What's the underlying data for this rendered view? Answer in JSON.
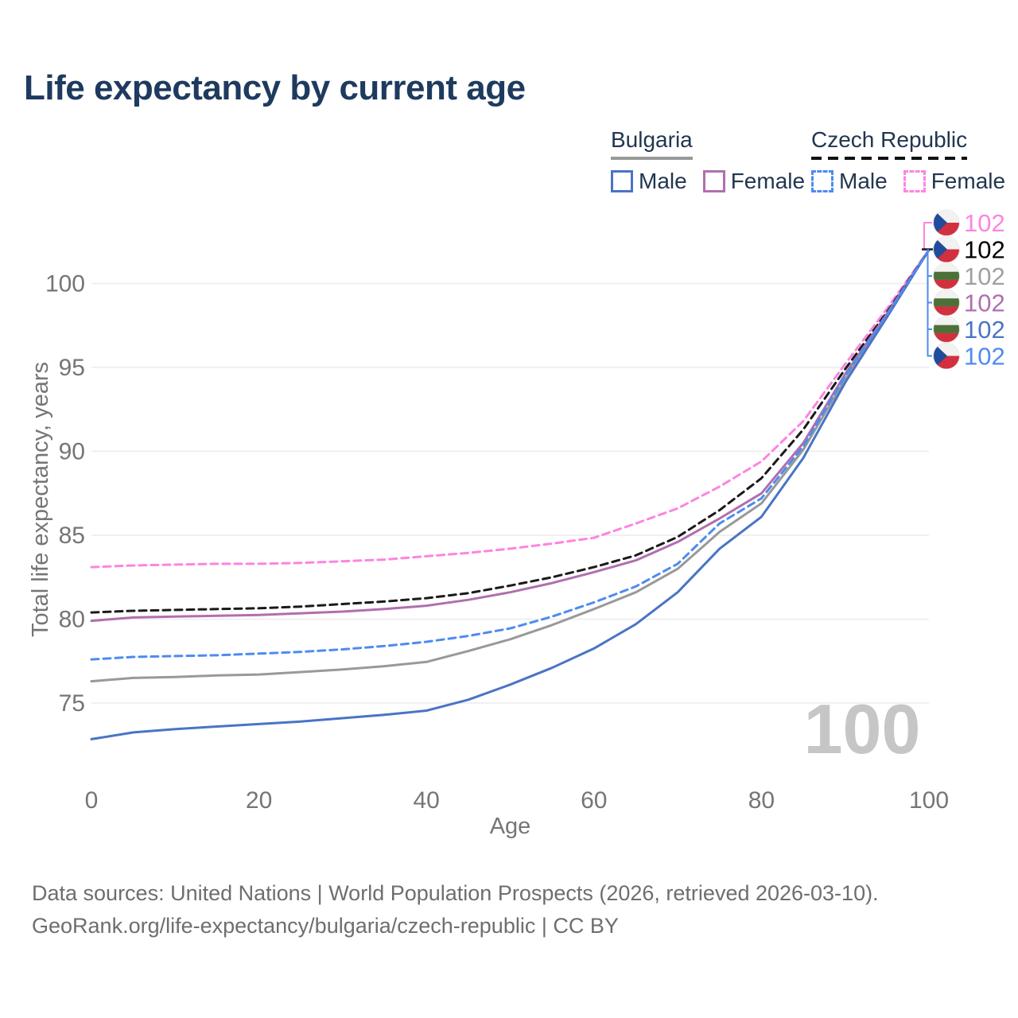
{
  "title": "Life expectancy by current age",
  "legend": {
    "groups": [
      {
        "country": "Bulgaria",
        "line_style": "solid",
        "rule_color": "#999999",
        "items": [
          {
            "label": "Male",
            "color": "#4a74c4"
          },
          {
            "label": "Female",
            "color": "#b06fae"
          }
        ]
      },
      {
        "country": "Czech Republic",
        "line_style": "dashed",
        "rule_color": "#111111",
        "items": [
          {
            "label": "Male",
            "color": "#4e8bf0"
          },
          {
            "label": "Female",
            "color": "#fc85e0"
          }
        ]
      }
    ]
  },
  "watermark_age": "100",
  "footer": {
    "line1": "Data sources: United Nations | World Population Prospects (2026, retrieved 2026-03-10).",
    "line2": "GeoRank.org/life-expectancy/bulgaria/czech-republic | CC BY"
  },
  "flag_colors": {
    "cz": {
      "white": "#f2f2f0",
      "red": "#d22f3f",
      "blue": "#204c9b"
    },
    "bg": {
      "white": "#f2f2f0",
      "green": "#4c7038",
      "red": "#d22f3f"
    }
  },
  "chart_data": {
    "type": "line",
    "title": "Life expectancy by current age",
    "xlabel": "Age",
    "ylabel": "Total life expectancy, years",
    "xlim": [
      0,
      100
    ],
    "ylim": [
      72,
      103
    ],
    "xticks": [
      0,
      20,
      40,
      60,
      80,
      100
    ],
    "yticks": [
      75,
      80,
      85,
      90,
      95,
      100
    ],
    "grid": "horizontal-only",
    "legend_position": "top-right",
    "x": [
      0,
      5,
      10,
      15,
      20,
      25,
      30,
      35,
      40,
      45,
      50,
      55,
      60,
      65,
      70,
      75,
      80,
      85,
      90,
      95,
      100
    ],
    "series": [
      {
        "name": "Czech Republic Female",
        "flag": "cz",
        "dash": true,
        "color": "#fc85e0",
        "end_label": "102",
        "values": [
          83.1,
          83.2,
          83.25,
          83.3,
          83.3,
          83.35,
          83.45,
          83.55,
          83.75,
          83.95,
          84.2,
          84.5,
          84.85,
          85.7,
          86.6,
          87.9,
          89.4,
          91.8,
          95.2,
          98.5,
          102
        ]
      },
      {
        "name": "Czech Republic",
        "flag": "cz",
        "dash": true,
        "color": "#1a1a1a",
        "end_label": "102",
        "label_color": "#000000",
        "values": [
          80.4,
          80.5,
          80.55,
          80.6,
          80.65,
          80.75,
          80.9,
          81.05,
          81.25,
          81.55,
          82.0,
          82.5,
          83.1,
          83.8,
          84.9,
          86.5,
          88.4,
          91.3,
          94.9,
          98.3,
          102
        ]
      },
      {
        "name": "Bulgaria",
        "flag": "bg",
        "dash": false,
        "color": "#999999",
        "end_label": "102",
        "label_color": "#a0a0a0",
        "values": [
          76.3,
          76.5,
          76.55,
          76.65,
          76.7,
          76.85,
          77.0,
          77.2,
          77.45,
          78.1,
          78.8,
          79.65,
          80.6,
          81.6,
          83.0,
          85.2,
          86.9,
          90.1,
          94.3,
          98.1,
          102
        ]
      },
      {
        "name": "Bulgaria Female",
        "flag": "bg",
        "dash": false,
        "color": "#b06fae",
        "end_label": "102",
        "values": [
          79.9,
          80.1,
          80.15,
          80.2,
          80.25,
          80.35,
          80.45,
          80.6,
          80.8,
          81.15,
          81.6,
          82.15,
          82.8,
          83.5,
          84.6,
          86.0,
          87.5,
          90.5,
          94.6,
          98.2,
          102
        ]
      },
      {
        "name": "Bulgaria Male",
        "flag": "bg",
        "dash": false,
        "color": "#4a74c4",
        "end_label": "102",
        "values": [
          72.85,
          73.25,
          73.45,
          73.6,
          73.75,
          73.9,
          74.1,
          74.3,
          74.55,
          75.2,
          76.1,
          77.1,
          78.25,
          79.7,
          81.6,
          84.2,
          86.1,
          89.6,
          94.1,
          98.0,
          102
        ]
      },
      {
        "name": "Czech Republic Male",
        "flag": "cz",
        "dash": true,
        "color": "#4e8bf0",
        "end_label": "102",
        "values": [
          77.6,
          77.75,
          77.8,
          77.85,
          77.95,
          78.05,
          78.2,
          78.4,
          78.65,
          79.0,
          79.45,
          80.15,
          81.0,
          81.95,
          83.3,
          85.7,
          87.2,
          90.3,
          94.5,
          98.15,
          102
        ]
      }
    ]
  }
}
